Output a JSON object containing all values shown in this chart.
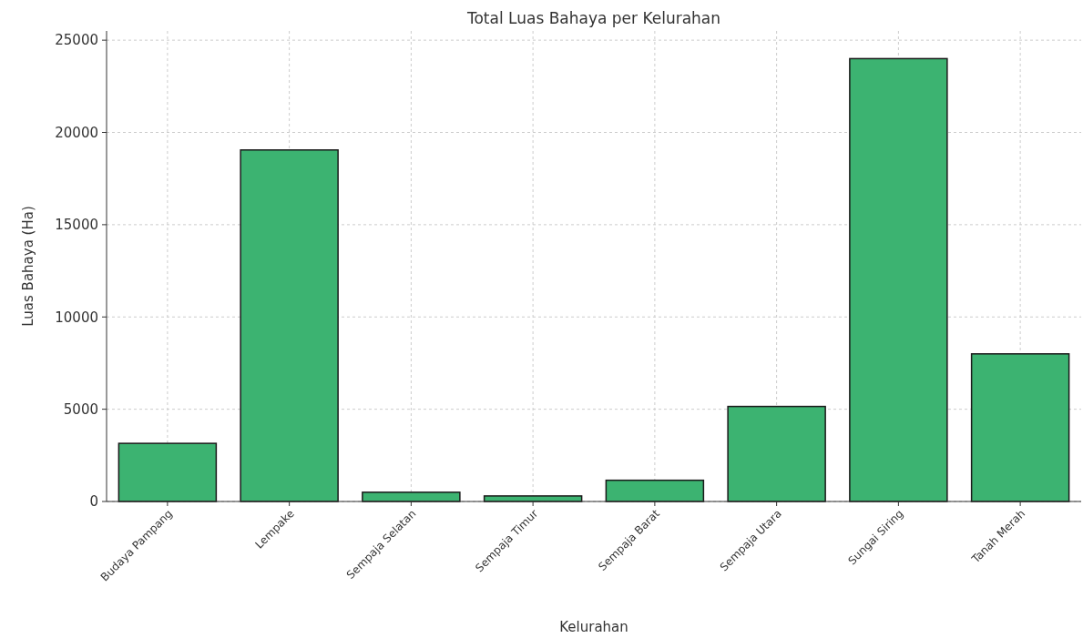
{
  "chart_data": {
    "type": "bar",
    "title": "Total Luas Bahaya per Kelurahan",
    "xlabel": "Kelurahan",
    "ylabel": "Luas Bahaya (Ha)",
    "categories": [
      "Budaya Pampang",
      "Lempake",
      "Sempaja Selatan",
      "Sempaja Timur",
      "Sempaja Barat",
      "Sempaja Utara",
      "Sungai Siring",
      "Tanah Merah"
    ],
    "values": [
      3150,
      19050,
      500,
      300,
      1150,
      5150,
      24000,
      8000
    ],
    "color": "#3cb371",
    "ylim": [
      0,
      25500
    ],
    "yticks": [
      0,
      5000,
      10000,
      15000,
      20000,
      25000
    ],
    "grid": true
  }
}
